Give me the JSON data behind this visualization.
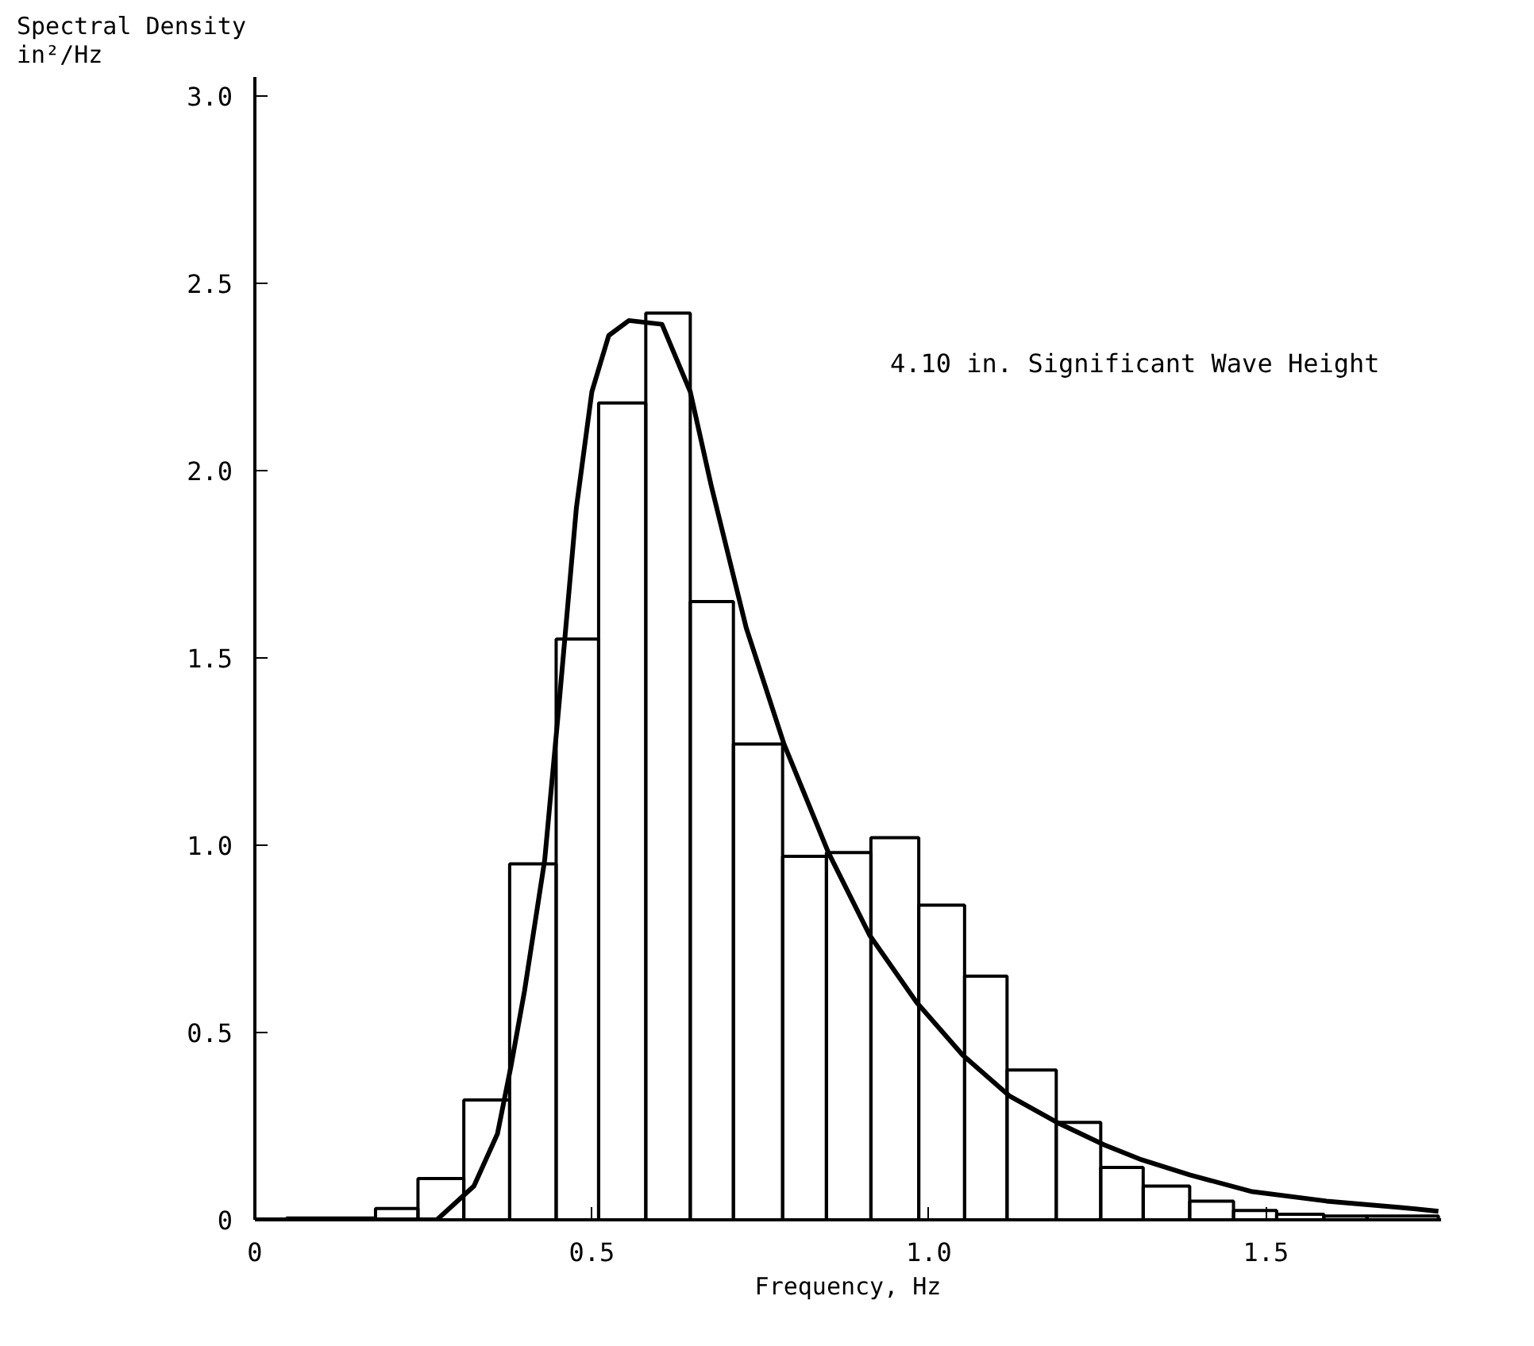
{
  "chart_data": {
    "type": "histogram",
    "xlabel": "Frequency, Hz",
    "ylabel": "Spectral Density\nin²/Hz",
    "annotations": [
      "4.10 in. Significant Wave Height"
    ],
    "bins": [
      0.047,
      0.113,
      0.179,
      0.242,
      0.31,
      0.378,
      0.447,
      0.51,
      0.58,
      0.646,
      0.71,
      0.783,
      0.848,
      0.914,
      0.985,
      1.053,
      1.116,
      1.189,
      1.255,
      1.318,
      1.387,
      1.452,
      1.516,
      1.586,
      1.65,
      1.756
    ],
    "values": [
      0.005,
      0.005,
      0.03,
      0.11,
      0.32,
      0.95,
      1.55,
      2.18,
      2.42,
      1.65,
      1.27,
      0.97,
      0.98,
      1.02,
      0.84,
      0.65,
      0.4,
      0.26,
      0.14,
      0.09,
      0.05,
      0.025,
      0.015,
      0.01,
      0.01
    ],
    "color": "#000000",
    "series": [
      {
        "type": "line",
        "color": "#000000",
        "x": [
          0,
          0.27,
          0.325,
          0.36,
          0.38,
          0.4,
          0.43,
          0.45,
          0.477,
          0.5,
          0.525,
          0.555,
          0.604,
          0.646,
          0.677,
          0.729,
          0.785,
          0.851,
          0.912,
          0.982,
          1.05,
          1.12,
          1.19,
          1.26,
          1.316,
          1.387,
          1.48,
          1.59,
          1.7,
          1.756
        ],
        "values": [
          0,
          0,
          0.09,
          0.23,
          0.41,
          0.61,
          0.96,
          1.35,
          1.9,
          2.21,
          2.36,
          2.4,
          2.39,
          2.21,
          1.96,
          1.58,
          1.27,
          0.98,
          0.76,
          0.58,
          0.44,
          0.33,
          0.26,
          0.2,
          0.16,
          0.12,
          0.075,
          0.05,
          0.033,
          0.023
        ]
      }
    ],
    "xlim": [
      0,
      1.76
    ],
    "ylim": [
      0,
      3.05
    ],
    "xticks": [
      {
        "value": 0,
        "label": "0"
      },
      0.5,
      {
        "value": 1,
        "label": "1.0"
      },
      1.5
    ],
    "yticks": [
      {
        "value": 0,
        "label": "0"
      },
      0.5,
      {
        "value": 1,
        "label": "1.0"
      },
      1.5,
      {
        "value": 2,
        "label": "2.0"
      },
      2.5,
      {
        "value": 3,
        "label": "3.0"
      }
    ],
    "grid": false,
    "line_style": "solid"
  }
}
